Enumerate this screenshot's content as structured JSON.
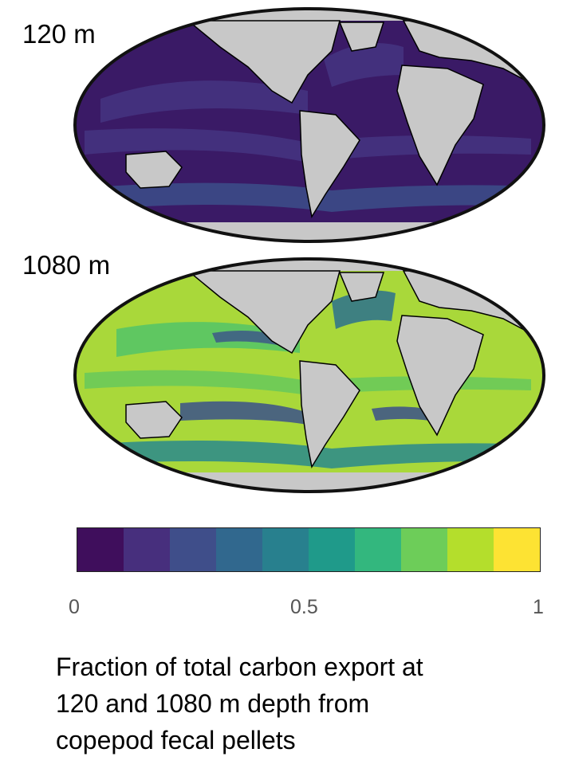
{
  "panels": [
    {
      "label": "120 m"
    },
    {
      "label": "1080 m"
    }
  ],
  "colorbar": {
    "colors": [
      "#440154",
      "#472c7a",
      "#3b518b",
      "#2c718e",
      "#21908d",
      "#27ad81",
      "#5cc863",
      "#aadc32",
      "#fde725"
    ],
    "actual_colors": [
      "#3f0e5c",
      "#472f7d",
      "#3f4e8a",
      "#31688e",
      "#28808e",
      "#1f9a8a",
      "#33b77e",
      "#6dcd59",
      "#b4de2c",
      "#fde333"
    ],
    "tick_labels": [
      "0",
      "0.5",
      "1"
    ],
    "range": [
      0,
      1
    ]
  },
  "caption": "Fraction of total carbon export at\n120 and  1080 m depth from\ncopepod fecal pellets",
  "style": {
    "land_color": "#c8c8c8",
    "coast_color": "#000000"
  }
}
